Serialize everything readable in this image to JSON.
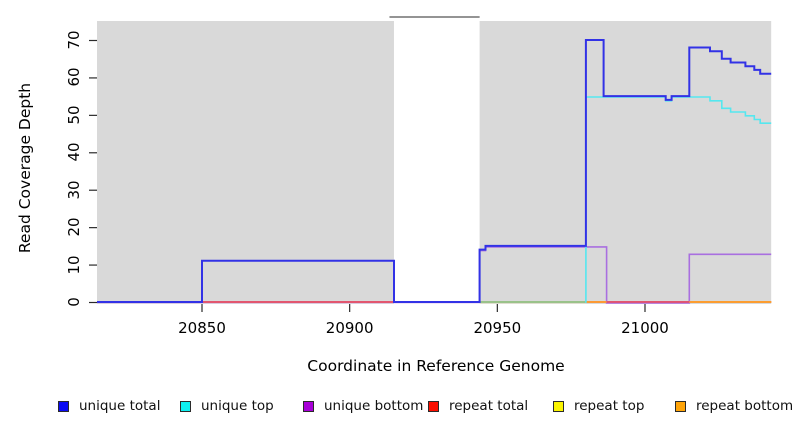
{
  "figure": {
    "background": "#ffffff",
    "panel_bg": "#d9d9d9"
  },
  "chart_data": {
    "type": "step-line",
    "title": "",
    "xlabel": "Coordinate in Reference Genome",
    "ylabel": "Read Coverage Depth",
    "xlim": [
      20814,
      21043
    ],
    "ylim": [
      0,
      75
    ],
    "grid": false,
    "legend_position": "bottom",
    "x_ticks": [
      {
        "value": 20850,
        "label": "20850"
      },
      {
        "value": 20900,
        "label": "20900"
      },
      {
        "value": 20950,
        "label": "20950"
      },
      {
        "value": 21000,
        "label": "21000"
      }
    ],
    "y_ticks": [
      {
        "value": 0,
        "label": "0"
      },
      {
        "value": 10,
        "label": "10"
      },
      {
        "value": 20,
        "label": "20"
      },
      {
        "value": 30,
        "label": "30"
      },
      {
        "value": 40,
        "label": "40"
      },
      {
        "value": 50,
        "label": "50"
      },
      {
        "value": 60,
        "label": "60"
      },
      {
        "value": 70,
        "label": "70"
      }
    ],
    "gap_region": {
      "start": 20915,
      "end": 20944,
      "fill": "#ffffff",
      "top_line_color": "#707070"
    },
    "series": [
      {
        "name": "unique total",
        "color": "#3232e6",
        "width": 2.0,
        "steps": [
          [
            20814,
            0
          ],
          [
            20850,
            11
          ],
          [
            20915,
            0
          ],
          [
            20944,
            14
          ],
          [
            20946,
            15
          ],
          [
            20980,
            70
          ],
          [
            20986,
            55
          ],
          [
            21007,
            54
          ],
          [
            21009,
            55
          ],
          [
            21015,
            68
          ],
          [
            21022,
            67
          ],
          [
            21026,
            65
          ],
          [
            21029,
            64
          ],
          [
            21034,
            63
          ],
          [
            21037,
            62
          ],
          [
            21039,
            61
          ],
          [
            21043,
            61
          ]
        ]
      },
      {
        "name": "unique top",
        "color": "#55e7ef",
        "width": 1.6,
        "steps": [
          [
            20980,
            0
          ],
          [
            20980,
            55
          ],
          [
            21007,
            54
          ],
          [
            21009,
            55
          ],
          [
            21022,
            54
          ],
          [
            21026,
            52
          ],
          [
            21029,
            51
          ],
          [
            21034,
            50
          ],
          [
            21037,
            49
          ],
          [
            21039,
            48
          ],
          [
            21043,
            48
          ]
        ]
      },
      {
        "name": "unique bottom",
        "color": "#a96fe0",
        "width": 1.6,
        "steps": [
          [
            20944,
            0
          ],
          [
            20944,
            14
          ],
          [
            20946,
            15
          ],
          [
            20987,
            0
          ],
          [
            21015,
            13
          ],
          [
            21043,
            13
          ]
        ]
      },
      {
        "name": "repeat total",
        "color": "#e14f70",
        "width": 1.4,
        "steps": [
          [
            20814,
            0
          ],
          [
            21043,
            0
          ]
        ]
      },
      {
        "name": "repeat top",
        "color": "#efe95e",
        "width": 1.4,
        "steps": [
          [
            20814,
            0
          ],
          [
            21043,
            0
          ]
        ]
      },
      {
        "name": "repeat bottom",
        "color": "#ff9d28",
        "width": 1.4,
        "steps": [
          [
            20814,
            0
          ],
          [
            21043,
            0
          ]
        ]
      }
    ],
    "baseline_overlap_segments": [
      {
        "from": 20814,
        "to": 20850,
        "color": "#3c3cea"
      },
      {
        "from": 20850,
        "to": 20915,
        "color": "#e14f70"
      },
      {
        "from": 20915,
        "to": 20944,
        "color": "#4d43e6"
      },
      {
        "from": 20944,
        "to": 20980,
        "color": "#8fca8f"
      },
      {
        "from": 20980,
        "to": 20987,
        "color": "#ff9d2e"
      },
      {
        "from": 20987,
        "to": 21015,
        "color": "#e14f70"
      },
      {
        "from": 21015,
        "to": 21043,
        "color": "#ffa028"
      }
    ],
    "underlay_slivers": [
      {
        "from": 20814,
        "to": 20944,
        "color": "#d9b3ea"
      },
      {
        "from": 20944,
        "to": 20980,
        "color": "#e8e4c2"
      },
      {
        "from": 20987,
        "to": 21015,
        "color": "#e8c4da"
      }
    ],
    "legend": [
      {
        "label": "unique total",
        "color": "#0b0bf2"
      },
      {
        "label": "unique top",
        "color": "#0ff0f0"
      },
      {
        "label": "unique bottom",
        "color": "#a800d8"
      },
      {
        "label": "repeat total",
        "color": "#fb0f00"
      },
      {
        "label": "repeat top",
        "color": "#fbf500"
      },
      {
        "label": "repeat bottom",
        "color": "#ffa408"
      }
    ]
  }
}
